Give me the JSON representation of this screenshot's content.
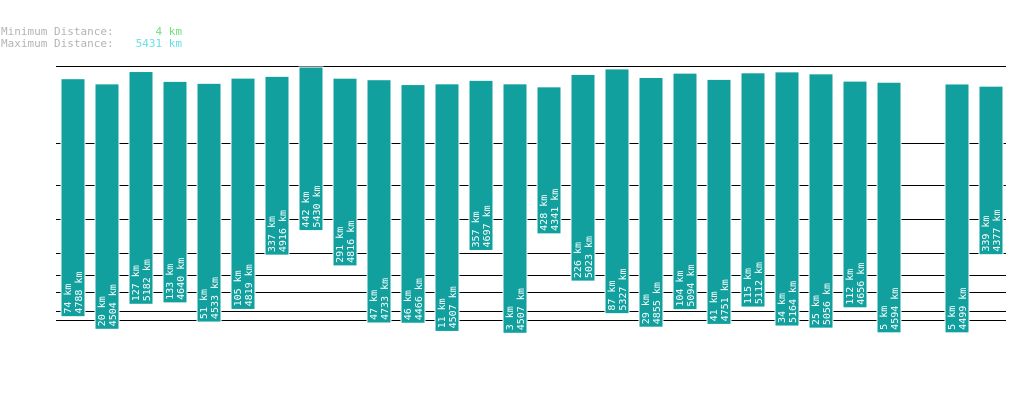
{
  "legend": {
    "min_label": "Minimum Distance:",
    "min_value": "4 km",
    "max_label": "Maximum Distance:",
    "max_value": "5431 km"
  },
  "colors": {
    "bar": "#12a09e",
    "bar_border": "#ffffff",
    "gridline": "#000000",
    "min_text": "#6ee07a",
    "max_text": "#66e0e8",
    "label_text": "#b4b4b4"
  },
  "chart_data": {
    "type": "bar",
    "note_units": "km",
    "bars": [
      {
        "min": 74,
        "max": 4788,
        "min_label": "74 km",
        "max_label": "4788 km"
      },
      {
        "min": 20,
        "max": 4504,
        "min_label": "20 km",
        "max_label": "4504 km"
      },
      {
        "min": 127,
        "max": 5182,
        "min_label": "127 km",
        "max_label": "5182 km"
      },
      {
        "min": 133,
        "max": 4640,
        "min_label": "133 km",
        "max_label": "4640 km"
      },
      {
        "min": 51,
        "max": 4533,
        "min_label": "51 km",
        "max_label": "4533 km"
      },
      {
        "min": 105,
        "max": 4819,
        "min_label": "105 km",
        "max_label": "4819 km"
      },
      {
        "min": 337,
        "max": 4916,
        "min_label": "337 km",
        "max_label": "4916 km"
      },
      {
        "min": 442,
        "max": 5430,
        "min_label": "442 km",
        "max_label": "5430 km"
      },
      {
        "min": 291,
        "max": 4816,
        "min_label": "291 km",
        "max_label": "4816 km"
      },
      {
        "min": 47,
        "max": 4733,
        "min_label": "47 km",
        "max_label": "4733 km"
      },
      {
        "min": 46,
        "max": 4466,
        "min_label": "46 km",
        "max_label": "4466 km"
      },
      {
        "min": 11,
        "max": 4507,
        "min_label": "11 km",
        "max_label": "4507 km"
      },
      {
        "min": 357,
        "max": 4697,
        "min_label": "357 km",
        "max_label": "4697 km"
      },
      {
        "min": 3,
        "max": 4507,
        "min_label": "3 km",
        "max_label": "4507 km"
      },
      {
        "min": 428,
        "max": 4341,
        "min_label": "428 km",
        "max_label": "4341 km"
      },
      {
        "min": 226,
        "max": 5023,
        "min_label": "226 km",
        "max_label": "5023 km"
      },
      {
        "min": 87,
        "max": 5327,
        "min_label": "87 km",
        "max_label": "5327 km"
      },
      {
        "min": 29,
        "max": 4855,
        "min_label": "29 km",
        "max_label": "4855 km"
      },
      {
        "min": 104,
        "max": 5094,
        "min_label": "104 km",
        "max_label": "5094 km"
      },
      {
        "min": 41,
        "max": 4751,
        "min_label": "41 km",
        "max_label": "4751 km"
      },
      {
        "min": 115,
        "max": 5112,
        "min_label": "115 km",
        "max_label": "5112 km"
      },
      {
        "min": 34,
        "max": 5164,
        "min_label": "34 km",
        "max_label": "5164 km"
      },
      {
        "min": 25,
        "max": 5056,
        "min_label": "25 km",
        "max_label": "5056 km"
      },
      {
        "min": 112,
        "max": 4656,
        "min_label": "112 km",
        "max_label": "4656 km"
      },
      {
        "min": 5,
        "max": 4594,
        "min_label": "5 km",
        "max_label": "4594 km"
      },
      null,
      {
        "min": 5,
        "max": 4499,
        "min_label": "5 km",
        "max_label": "4499 km"
      },
      {
        "min": 339,
        "max": 4377,
        "min_label": "339 km",
        "max_label": "4377 km"
      }
    ],
    "title": "",
    "xlabel": "",
    "ylabel": "",
    "grid": true
  }
}
